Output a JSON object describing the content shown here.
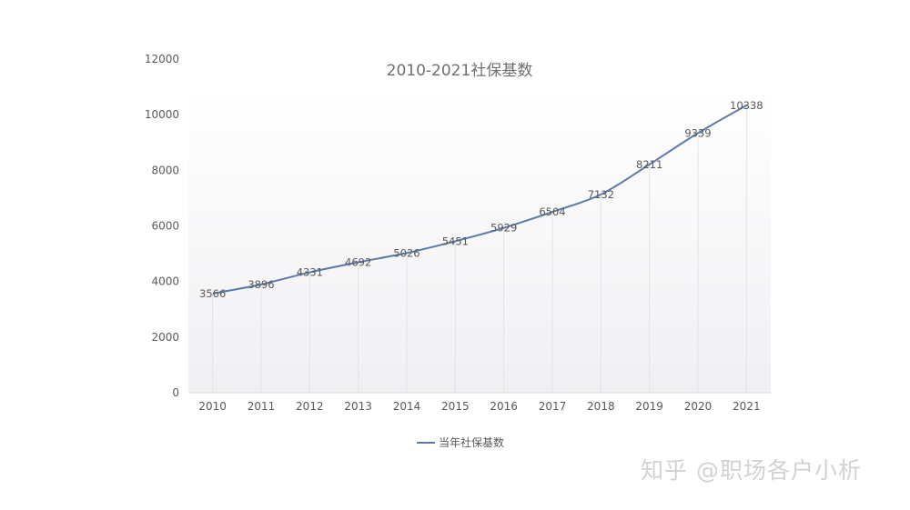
{
  "chart_data": {
    "type": "line",
    "title": "2010-2021社保基数",
    "xlabel": "",
    "ylabel": "",
    "categories": [
      "2010",
      "2011",
      "2012",
      "2013",
      "2014",
      "2015",
      "2016",
      "2017",
      "2018",
      "2019",
      "2020",
      "2021"
    ],
    "series": [
      {
        "name": "当年社保基数",
        "values": [
          3566,
          3896,
          4331,
          4692,
          5026,
          5451,
          5929,
          6504,
          7132,
          8211,
          9339,
          10338
        ],
        "color": "#5b7ba8"
      }
    ],
    "ylim": [
      0,
      12000
    ],
    "yticks": [
      0,
      2000,
      4000,
      6000,
      8000,
      10000,
      12000
    ],
    "legend_position": "bottom",
    "data_labels": true,
    "vertical_drop_lines": true
  },
  "watermark": "知乎 @职场各户小析"
}
